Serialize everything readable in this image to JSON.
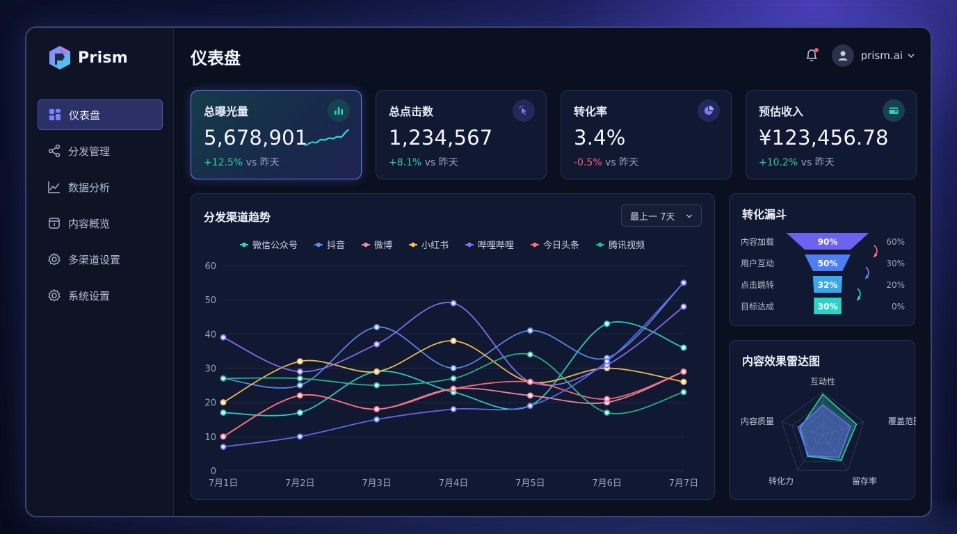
{
  "app": {
    "name": "Prism"
  },
  "sidebar": {
    "items": [
      {
        "label": "仪表盘",
        "icon": "grid-icon",
        "active": true
      },
      {
        "label": "分发管理",
        "icon": "share-icon",
        "active": false
      },
      {
        "label": "数据分析",
        "icon": "line-chart-icon",
        "active": false
      },
      {
        "label": "内容概览",
        "icon": "document-icon",
        "active": false
      },
      {
        "label": "多渠道设置",
        "icon": "gear-icon",
        "active": false
      },
      {
        "label": "系统设置",
        "icon": "gear-icon",
        "active": false
      }
    ]
  },
  "header": {
    "title": "仪表盘",
    "user": "prism.ai"
  },
  "kpis": [
    {
      "title": "总曝光量",
      "value": "5,678,901",
      "delta": "+12.5%",
      "delta_suffix": "vs 昨天",
      "trend": "up",
      "icon": "bar-chart-icon",
      "icon_color": "#2fd1c0"
    },
    {
      "title": "总点击数",
      "value": "1,234,567",
      "delta": "+8.1%",
      "delta_suffix": "vs 昨天",
      "trend": "up",
      "icon": "cursor-click-icon",
      "icon_color": "#6b6ff5"
    },
    {
      "title": "转化率",
      "value": "3.4%",
      "delta": "-0.5%",
      "delta_suffix": "vs 昨天",
      "trend": "down",
      "icon": "pie-chart-icon",
      "icon_color": "#6b6ff5"
    },
    {
      "title": "预估收入",
      "value": "¥123,456.78",
      "delta": "+10.2%",
      "delta_suffix": "vs 昨天",
      "trend": "up",
      "icon": "wallet-icon",
      "icon_color": "#2fd1c0"
    }
  ],
  "trend": {
    "title": "分发渠道趋势",
    "range_label": "最上一 7天"
  },
  "chart_data": [
    {
      "type": "line",
      "categories": [
        "7月1日",
        "7月2日",
        "7月3日",
        "7月4日",
        "7月5日",
        "7月6日",
        "7月7日"
      ],
      "ylim": [
        0,
        60
      ],
      "yticks": [
        0,
        10,
        20,
        30,
        40,
        50,
        60
      ],
      "grid": true,
      "legend": "top",
      "series": [
        {
          "name": "微信公众号",
          "color": "#2ed3c6",
          "values": [
            17,
            17,
            29,
            23,
            19,
            43,
            36
          ]
        },
        {
          "name": "抖音",
          "color": "#5b8cf0",
          "values": [
            27,
            25,
            42,
            30,
            41,
            33,
            55
          ]
        },
        {
          "name": "微博",
          "color": "#f08aa0",
          "values": [
            10,
            22,
            18,
            24,
            22,
            20,
            29
          ]
        },
        {
          "name": "小红书",
          "color": "#f5c451",
          "values": [
            20,
            32,
            29,
            38,
            26,
            30,
            26
          ]
        },
        {
          "name": "哔哩哔哩",
          "color": "#8a6ff5",
          "values": [
            39,
            29,
            37,
            49,
            26,
            31,
            48
          ]
        },
        {
          "name": "今日头条",
          "color": "#ff6b78",
          "values": [
            10,
            22,
            18,
            24,
            26,
            21,
            29
          ]
        },
        {
          "name": "腾讯视频",
          "color": "#28b890",
          "values": [
            27,
            27,
            25,
            27,
            34,
            17,
            23
          ]
        },
        {
          "name": "",
          "color": "#5f6ef0",
          "values": [
            7,
            10,
            15,
            18,
            19,
            32,
            55
          ]
        }
      ]
    },
    {
      "type": "funnel",
      "title": "转化漏斗",
      "categories": [
        "内容加载",
        "用户互动",
        "点击跳转",
        "目标达成"
      ],
      "values": [
        90,
        50,
        32,
        30
      ],
      "labels": [
        "90%",
        "50%",
        "32%",
        "30%"
      ],
      "right_labels": [
        "60%",
        "30%",
        "20%",
        "0%"
      ],
      "colors": [
        "#6b62f0",
        "#4e7ef5",
        "#3aa7ec",
        "#2fd1c6"
      ]
    },
    {
      "type": "radar",
      "title": "内容效果雷达图",
      "axes": [
        "互动性",
        "覆盖范围",
        "留存率",
        "转化力",
        "内容质量"
      ],
      "max": 100,
      "series": [
        {
          "name": "",
          "color": "#2fd1a8",
          "values": [
            95,
            82,
            72,
            60,
            55
          ]
        },
        {
          "name": "",
          "color": "#6b6ff5",
          "values": [
            70,
            68,
            64,
            58,
            60
          ]
        }
      ]
    }
  ]
}
